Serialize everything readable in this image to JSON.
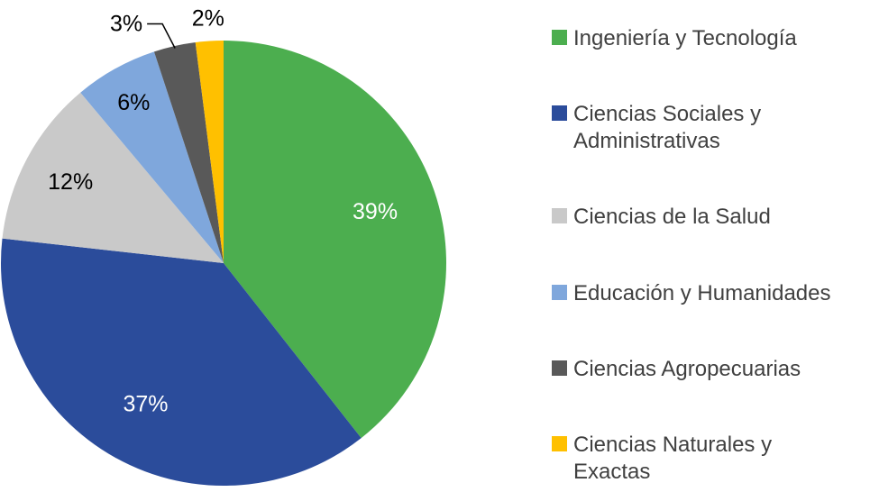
{
  "chart_data": {
    "type": "pie",
    "title": "",
    "start_angle_deg": 0,
    "direction": "clockwise",
    "legend_position": "right",
    "slices": [
      {
        "label": "Ingeniería y Tecnología",
        "value": 39,
        "display": "39%",
        "color": "#4CAE4F",
        "label_position": "inside",
        "label_color": "#FFFFFF",
        "leader_line": false
      },
      {
        "label": "Ciencias Sociales y Administrativas",
        "value": 37,
        "display": "37%",
        "color": "#2B4C9B",
        "label_position": "inside",
        "label_color": "#FFFFFF",
        "leader_line": false
      },
      {
        "label": "Ciencias de la Salud",
        "value": 12,
        "display": "12%",
        "color": "#C9C9C9",
        "label_position": "inside",
        "label_color": "#000000",
        "leader_line": false
      },
      {
        "label": "Educación y Humanidades",
        "value": 6,
        "display": "6%",
        "color": "#7FA7DC",
        "label_position": "inside",
        "label_color": "#000000",
        "leader_line": false
      },
      {
        "label": "Ciencias Agropecuarias",
        "value": 3,
        "display": "3%",
        "color": "#595959",
        "label_position": "outside",
        "label_color": "#000000",
        "leader_line": true
      },
      {
        "label": "Ciencias Naturales y Exactas",
        "value": 2,
        "display": "2%",
        "color": "#FFC000",
        "label_position": "outside",
        "label_color": "#000000",
        "leader_line": false
      }
    ]
  }
}
